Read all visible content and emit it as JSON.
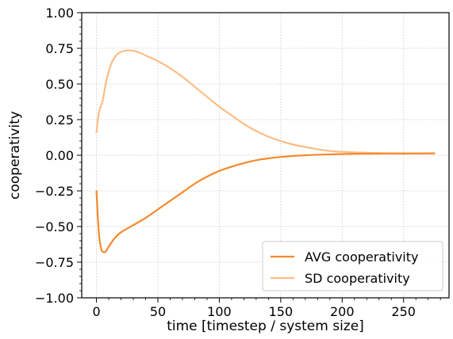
{
  "chart_data": {
    "type": "line",
    "title": "",
    "xlabel": "time [timestep / system size]",
    "ylabel": "cooperativity",
    "xlim": [
      -12,
      287
    ],
    "ylim": [
      -1.0,
      1.0
    ],
    "x_ticks": [
      0,
      50,
      100,
      150,
      200,
      250
    ],
    "x_tick_labels": [
      "0",
      "50",
      "100",
      "150",
      "200",
      "250"
    ],
    "y_ticks": [
      -1.0,
      -0.75,
      -0.5,
      -0.25,
      0.0,
      0.25,
      0.5,
      0.75,
      1.0
    ],
    "y_tick_labels": [
      "−1.00",
      "−0.75",
      "−0.50",
      "−0.25",
      "0.00",
      "0.25",
      "0.50",
      "0.75",
      "1.00"
    ],
    "grid": true,
    "grid_color": "#c8c8c8",
    "legend_position": "lower-right",
    "series": [
      {
        "name": "AVG cooperativity",
        "color": "#f5892a",
        "x": [
          0,
          2,
          4,
          6,
          8,
          10,
          15,
          20,
          30,
          40,
          50,
          60,
          70,
          80,
          90,
          100,
          110,
          120,
          130,
          140,
          150,
          170,
          190,
          210,
          230,
          250,
          275
        ],
        "y": [
          -0.25,
          -0.55,
          -0.66,
          -0.68,
          -0.67,
          -0.64,
          -0.58,
          -0.54,
          -0.49,
          -0.44,
          -0.38,
          -0.32,
          -0.26,
          -0.2,
          -0.15,
          -0.11,
          -0.08,
          -0.055,
          -0.035,
          -0.022,
          -0.012,
          0.0,
          0.006,
          0.01,
          0.012,
          0.012,
          0.013
        ]
      },
      {
        "name": "SD cooperativity",
        "color": "#fbbd85",
        "x": [
          0,
          2,
          5,
          8,
          12,
          16,
          20,
          25,
          30,
          35,
          40,
          50,
          60,
          70,
          80,
          90,
          100,
          110,
          120,
          130,
          140,
          150,
          160,
          175,
          190,
          210,
          230,
          250,
          275
        ],
        "y": [
          0.16,
          0.3,
          0.38,
          0.52,
          0.64,
          0.7,
          0.725,
          0.735,
          0.733,
          0.72,
          0.7,
          0.66,
          0.61,
          0.55,
          0.48,
          0.41,
          0.34,
          0.28,
          0.22,
          0.17,
          0.13,
          0.1,
          0.075,
          0.05,
          0.03,
          0.02,
          0.015,
          0.013,
          0.013
        ]
      }
    ]
  }
}
